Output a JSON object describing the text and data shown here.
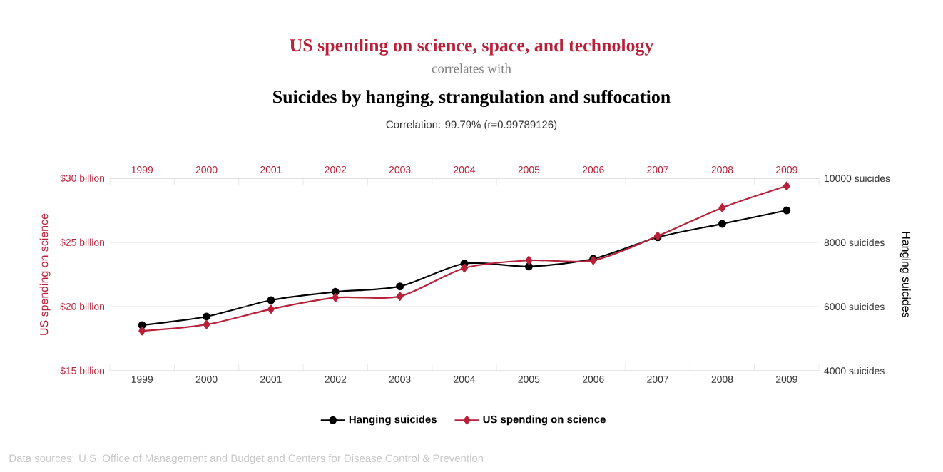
{
  "chart_data": {
    "type": "line",
    "title": "US spending on science, space, and technology",
    "subtitle": "correlates with",
    "annotations": [
      "Suicides by hanging, strangulation and suffocation",
      "Correlation: 99.79% (r=0.99789126)",
      "Data sources: U.S. Office of Management and Budget and Centers for Disease Control & Prevention"
    ],
    "categories": [
      "1999",
      "2000",
      "2001",
      "2002",
      "2003",
      "2004",
      "2005",
      "2006",
      "2007",
      "2008",
      "2009"
    ],
    "ylabel": "US spending on science",
    "y2label": "Hanging suicides",
    "ylim": [
      15,
      30
    ],
    "yticks": [
      {
        "value": 15,
        "label": "$15 billion"
      },
      {
        "value": 20,
        "label": "$20 billion"
      },
      {
        "value": 25,
        "label": "$25 billion"
      },
      {
        "value": 30,
        "label": "$30 billion"
      }
    ],
    "y2lim": [
      4000,
      10000
    ],
    "y2ticks": [
      {
        "value": 4000,
        "label": "4000 suicides"
      },
      {
        "value": 6000,
        "label": "6000 suicides"
      },
      {
        "value": 8000,
        "label": "8000 suicides"
      },
      {
        "value": 10000,
        "label": "10000 suicides"
      }
    ],
    "series": [
      {
        "name": "Hanging suicides",
        "color": "#000000",
        "axis": "y2",
        "marker": "circle",
        "values": [
          5420,
          5690,
          6200,
          6460,
          6630,
          7340,
          7250,
          7490,
          8160,
          8580,
          9000
        ]
      },
      {
        "name": "US spending on science",
        "color": "#b8213a",
        "axis": "y",
        "marker": "diamond",
        "values": [
          18.1,
          18.6,
          19.8,
          20.7,
          20.8,
          23.0,
          23.6,
          23.6,
          25.5,
          27.7,
          29.4
        ]
      }
    ],
    "grid": "y",
    "legend": "bottom"
  }
}
